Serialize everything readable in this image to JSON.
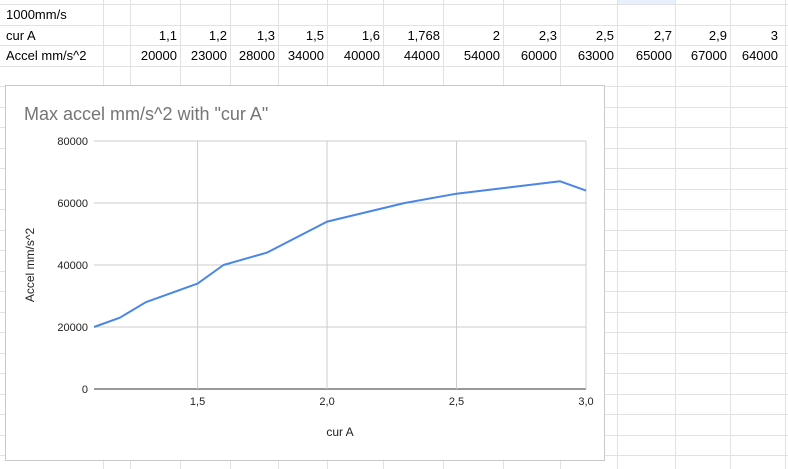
{
  "sheet": {
    "a1": "1000mm/s",
    "row_labels": [
      "cur A",
      "Accel mm/s^2"
    ],
    "cur_values": [
      "1,1",
      "1,2",
      "1,3",
      "1,5",
      "1,6",
      "1,768",
      "2",
      "2,3",
      "2,5",
      "2,7",
      "2,9",
      "3"
    ],
    "accel_values": [
      "20000",
      "23000",
      "28000",
      "34000",
      "40000",
      "44000",
      "54000",
      "60000",
      "63000",
      "65000",
      "67000",
      "64000"
    ]
  },
  "chart_data": {
    "type": "line",
    "title": "Max accel mm/s^2 with \"cur A\"",
    "xlabel": "cur A",
    "ylabel": "Accel mm/s^2",
    "x": [
      1.1,
      1.2,
      1.3,
      1.5,
      1.6,
      1.768,
      2.0,
      2.3,
      2.5,
      2.7,
      2.9,
      3.0
    ],
    "series": [
      {
        "values": [
          20000,
          23000,
          28000,
          34000,
          40000,
          44000,
          54000,
          60000,
          63000,
          65000,
          67000,
          64000
        ],
        "color": "#4a86e8"
      }
    ],
    "xlim": [
      1.1,
      3.0
    ],
    "ylim": [
      0,
      80000
    ],
    "x_ticks": [
      "1,5",
      "2,0",
      "2,5",
      "3,0"
    ],
    "y_ticks": [
      "0",
      "20000",
      "40000",
      "60000",
      "80000"
    ],
    "grid": true,
    "legend": "none"
  }
}
